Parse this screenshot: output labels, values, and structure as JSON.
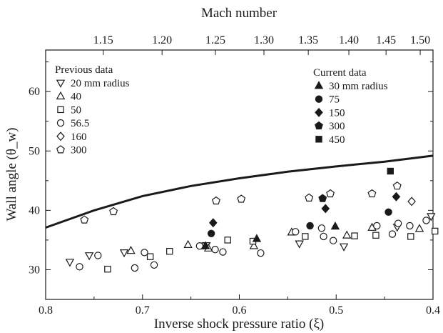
{
  "chart_data": {
    "type": "scatter",
    "xlabel": "Inverse shock pressure ratio (ξ)",
    "ylabel": "Wall angle (θ_w)",
    "top_xlabel": "Mach number",
    "xlim": [
      0.8,
      0.4
    ],
    "ylim": [
      25,
      67
    ],
    "x_ticks": [
      0.8,
      0.7,
      0.6,
      0.5,
      0.4
    ],
    "x_tick_labels": [
      "0.8",
      "0.7",
      "0.6",
      "0.5",
      "0.4"
    ],
    "y_ticks": [
      30,
      40,
      50,
      60
    ],
    "y_tick_labels": [
      "30",
      "40",
      "50",
      "60"
    ],
    "top_ticks": [
      {
        "label": "1.15",
        "x": 0.7405
      },
      {
        "label": "1.20",
        "x": 0.6798
      },
      {
        "label": "1.25",
        "x": 0.6247
      },
      {
        "label": "1.30",
        "x": 0.5746
      },
      {
        "label": "1.35",
        "x": 0.5288
      },
      {
        "label": "1.40",
        "x": 0.4869
      },
      {
        "label": "1.45",
        "x": 0.4485
      },
      {
        "label": "1.50",
        "x": 0.4132
      }
    ],
    "grid": false,
    "legends": [
      {
        "title": "Previous data",
        "position": "top-left",
        "entries": [
          {
            "label": "20 mm radius",
            "marker": "triangle-down",
            "filled": false
          },
          {
            "label": "40",
            "marker": "triangle-up",
            "filled": false
          },
          {
            "label": "50",
            "marker": "square",
            "filled": false
          },
          {
            "label": "56.5",
            "marker": "circle",
            "filled": false
          },
          {
            "label": "160",
            "marker": "diamond",
            "filled": false
          },
          {
            "label": "300",
            "marker": "pentagon",
            "filled": false
          }
        ]
      },
      {
        "title": "Current data",
        "position": "top-center",
        "entries": [
          {
            "label": "30 mm radius",
            "marker": "triangle-up",
            "filled": true
          },
          {
            "label": "75",
            "marker": "circle",
            "filled": true
          },
          {
            "label": "150",
            "marker": "diamond",
            "filled": true
          },
          {
            "label": "300",
            "marker": "pentagon",
            "filled": true
          },
          {
            "label": "450",
            "marker": "square",
            "filled": true
          }
        ]
      }
    ],
    "line": {
      "points": [
        [
          0.8,
          37.1
        ],
        [
          0.75,
          40.0
        ],
        [
          0.7,
          42.4
        ],
        [
          0.65,
          44.1
        ],
        [
          0.6,
          45.4
        ],
        [
          0.55,
          46.5
        ],
        [
          0.5,
          47.4
        ],
        [
          0.45,
          48.2
        ],
        [
          0.4,
          49.2
        ]
      ]
    },
    "series": [
      {
        "marker": "triangle-down",
        "filled": false,
        "points": [
          [
            0.775,
            31.3
          ],
          [
            0.755,
            32.4
          ],
          [
            0.719,
            32.9
          ],
          [
            0.634,
            34.1
          ],
          [
            0.538,
            34.4
          ],
          [
            0.492,
            33.9
          ],
          [
            0.437,
            37.2
          ],
          [
            0.402,
            39.0
          ]
        ]
      },
      {
        "marker": "triangle-up",
        "filled": false,
        "points": [
          [
            0.712,
            33.2
          ],
          [
            0.653,
            34.2
          ],
          [
            0.632,
            33.6
          ],
          [
            0.585,
            34.0
          ],
          [
            0.546,
            36.3
          ],
          [
            0.489,
            35.8
          ],
          [
            0.463,
            37.1
          ],
          [
            0.414,
            36.9
          ]
        ]
      },
      {
        "marker": "square",
        "filled": false,
        "points": [
          [
            0.736,
            30.1
          ],
          [
            0.692,
            32.2
          ],
          [
            0.672,
            33.1
          ],
          [
            0.637,
            34.0
          ],
          [
            0.612,
            35.0
          ],
          [
            0.586,
            34.8
          ],
          [
            0.532,
            35.6
          ],
          [
            0.481,
            35.7
          ],
          [
            0.459,
            35.8
          ],
          [
            0.423,
            35.6
          ],
          [
            0.398,
            36.5
          ]
        ]
      },
      {
        "marker": "circle",
        "filled": false,
        "points": [
          [
            0.765,
            30.5
          ],
          [
            0.746,
            32.4
          ],
          [
            0.708,
            30.3
          ],
          [
            0.698,
            32.9
          ],
          [
            0.688,
            30.8
          ],
          [
            0.641,
            34.0
          ],
          [
            0.625,
            33.4
          ],
          [
            0.617,
            33.0
          ],
          [
            0.578,
            32.8
          ],
          [
            0.542,
            36.4
          ],
          [
            0.515,
            37.0
          ],
          [
            0.513,
            35.6
          ],
          [
            0.503,
            34.9
          ],
          [
            0.458,
            37.4
          ],
          [
            0.442,
            36.0
          ],
          [
            0.436,
            37.8
          ],
          [
            0.424,
            37.4
          ],
          [
            0.407,
            38.3
          ]
        ]
      },
      {
        "marker": "diamond",
        "filled": false,
        "points": [
          [
            0.422,
            41.5
          ]
        ]
      },
      {
        "marker": "pentagon",
        "filled": false,
        "points": [
          [
            0.76,
            38.4
          ],
          [
            0.73,
            39.8
          ],
          [
            0.624,
            41.6
          ],
          [
            0.598,
            41.9
          ],
          [
            0.528,
            42.1
          ],
          [
            0.506,
            42.8
          ],
          [
            0.463,
            42.8
          ],
          [
            0.437,
            44.1
          ]
        ]
      },
      {
        "marker": "triangle-up",
        "filled": true,
        "points": [
          [
            0.635,
            34.0
          ],
          [
            0.582,
            35.2
          ],
          [
            0.501,
            37.3
          ]
        ]
      },
      {
        "marker": "circle",
        "filled": true,
        "points": [
          [
            0.629,
            36.1
          ],
          [
            0.527,
            37.4
          ],
          [
            0.446,
            39.7
          ]
        ]
      },
      {
        "marker": "diamond",
        "filled": true,
        "points": [
          [
            0.627,
            37.9
          ],
          [
            0.511,
            40.3
          ],
          [
            0.438,
            42.3
          ]
        ]
      },
      {
        "marker": "pentagon",
        "filled": true,
        "points": [
          [
            0.514,
            42.0
          ]
        ]
      },
      {
        "marker": "square",
        "filled": true,
        "points": [
          [
            0.444,
            46.6
          ]
        ]
      }
    ]
  }
}
